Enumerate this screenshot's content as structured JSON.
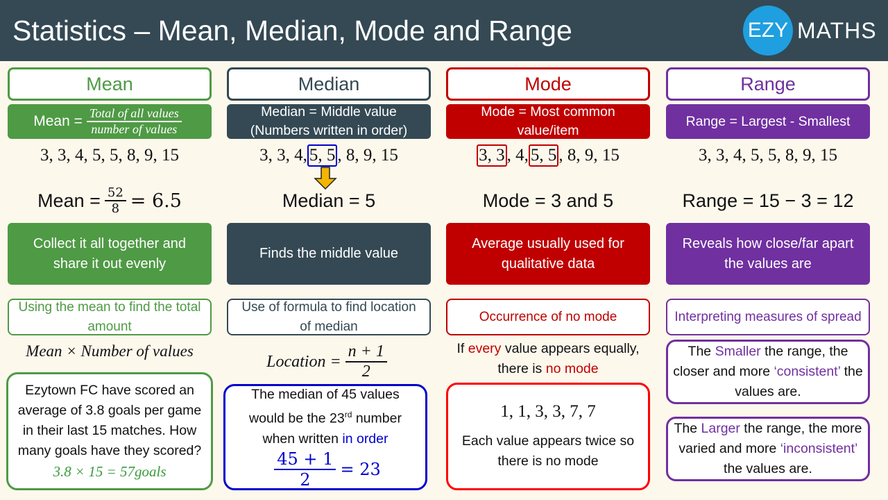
{
  "header": {
    "title": "Statistics – Mean, Median, Mode and Range",
    "logo_left": "EZY",
    "logo_right": "MATHS"
  },
  "colors": {
    "header": "#344954",
    "mean": "#4f9a45",
    "median": "#344954",
    "mode": "#c00000",
    "range": "#7030a0",
    "median_box": "#0000cc",
    "arrow": "#f5b400"
  },
  "mean": {
    "heading": "Mean",
    "def_label": "Mean =",
    "def_numerator": "Total of all values",
    "def_denominator": "number of values",
    "sequence": "3, 3, 4, 5, 5, 8, 9, 15",
    "calc_left": "Mean =",
    "calc_num": "52",
    "calc_den": "8",
    "calc_right": "= 6.5",
    "desc": "Collect it all together and share it out evenly",
    "sub_heading": "Using the mean to find the total amount",
    "formula": "Mean × Number of values",
    "example": "Ezytown FC have scored an average of 3.8 goals per game in their last 15 matches. How many goals have they scored?",
    "answer": "3.8 × 15 = 57goals"
  },
  "median": {
    "heading": "Median",
    "def_line1": "Median = Middle value",
    "def_line2": "(Numbers written in order)",
    "seq_a": "3, 3, 4, ",
    "seq_mid": "5, 5",
    "seq_b": ", 8, 9, 15",
    "result": "Median = 5",
    "desc": "Finds the middle value",
    "sub_heading": "Use of formula to find location of median",
    "loc_label": "Location =",
    "loc_num": "n + 1",
    "loc_den": "2",
    "ex_line1": "The median of 45 values would be the 23",
    "ex_sup": "rd",
    "ex_line2": " number when written ",
    "ex_blue": "in order",
    "calc_num": "45 + 1",
    "calc_den": "2",
    "calc_right": "= 23"
  },
  "mode": {
    "heading": "Mode",
    "def_line1": "Mode = Most common",
    "def_line2": "value/item",
    "seq_1": "3, 3",
    "seq_2": ", 4, ",
    "seq_3": "5, 5",
    "seq_4": ", 8, 9, 15",
    "result": "Mode = 3 and 5",
    "desc": "Average usually used for qualitative data",
    "sub_heading": "Occurrence of no mode",
    "note_a": "If ",
    "note_b": "every",
    "note_c": " value appears equally, there is ",
    "note_d": "no mode",
    "ex_seq": "1, 1, 3, 3, 7, 7",
    "ex_text": "Each value appears twice so there is no mode"
  },
  "range": {
    "heading": "Range",
    "def": "Range = Largest - Smallest",
    "sequence": "3, 3, 4, 5, 5, 8, 9, 15",
    "result": "Range = 15 − 3 = 12",
    "desc": "Reveals how close/far apart the values are",
    "sub_heading": "Interpreting measures of spread",
    "small_a": "The ",
    "small_b": "Smaller",
    "small_c": " the range, the closer and more ",
    "small_d": "‘consistent’",
    "small_e": " the values are.",
    "large_a": "The ",
    "large_b": "Larger",
    "large_c": " the range, the more varied and more ",
    "large_d": "‘inconsistent’",
    "large_e": " the values are."
  }
}
